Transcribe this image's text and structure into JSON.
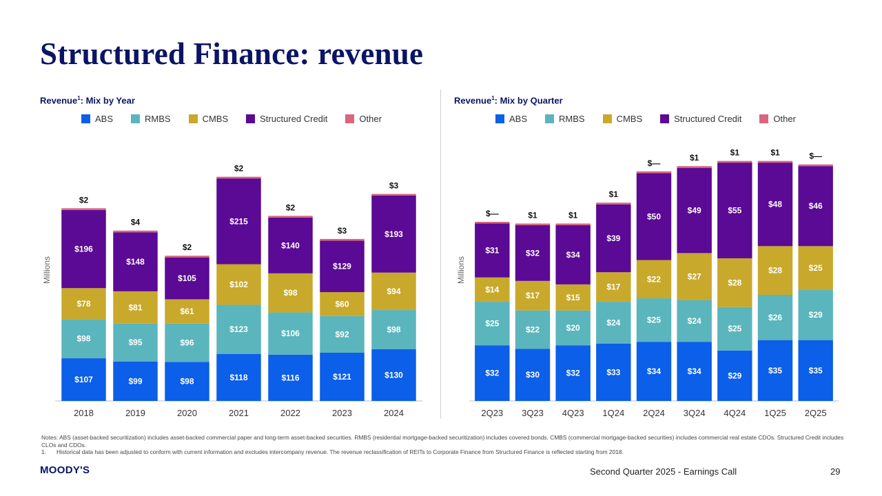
{
  "title": "Structured Finance: revenue",
  "colors": {
    "ABS": "#0b5fe8",
    "RMBS": "#5bb5bd",
    "CMBS": "#c8a92c",
    "Structured Credit": "#5a0a94",
    "Other": "#d9667c"
  },
  "chart_data": [
    {
      "type": "bar",
      "stacked": true,
      "title": "Revenue",
      "title_superscript": "1",
      "title_suffix": ": Mix by Year",
      "ylabel": "Millions",
      "legend": [
        "ABS",
        "RMBS",
        "CMBS",
        "Structured Credit",
        "Other"
      ],
      "categories": [
        "2018",
        "2019",
        "2020",
        "2021",
        "2022",
        "2023",
        "2024"
      ],
      "series": [
        {
          "name": "ABS",
          "values": [
            107,
            99,
            98,
            118,
            116,
            121,
            130
          ],
          "labels": [
            "$107",
            "$99",
            "$98",
            "$118",
            "$116",
            "$121",
            "$130"
          ]
        },
        {
          "name": "RMBS",
          "values": [
            98,
            95,
            96,
            123,
            106,
            92,
            98
          ],
          "labels": [
            "$98",
            "$95",
            "$96",
            "$123",
            "$106",
            "$92",
            "$98"
          ]
        },
        {
          "name": "CMBS",
          "values": [
            78,
            81,
            61,
            102,
            98,
            60,
            94
          ],
          "labels": [
            "$78",
            "$81",
            "$61",
            "$102",
            "$98",
            "$60",
            "$94"
          ]
        },
        {
          "name": "Structured Credit",
          "values": [
            196,
            148,
            105,
            215,
            140,
            129,
            193
          ],
          "labels": [
            "$196",
            "$148",
            "$105",
            "$215",
            "$140",
            "$129",
            "$193"
          ]
        },
        {
          "name": "Other",
          "values": [
            2,
            4,
            2,
            2,
            2,
            3,
            3
          ],
          "labels": [
            "$2",
            "$4",
            "$2",
            "$2",
            "$2",
            "$3",
            "$3"
          ]
        }
      ]
    },
    {
      "type": "bar",
      "stacked": true,
      "title": "Revenue",
      "title_superscript": "1",
      "title_suffix": ": Mix by Quarter",
      "ylabel": "Millions",
      "legend": [
        "ABS",
        "RMBS",
        "CMBS",
        "Structured Credit",
        "Other"
      ],
      "categories": [
        "2Q23",
        "3Q23",
        "4Q23",
        "1Q24",
        "2Q24",
        "3Q24",
        "4Q24",
        "1Q25",
        "2Q25"
      ],
      "series": [
        {
          "name": "ABS",
          "values": [
            32,
            30,
            32,
            33,
            34,
            34,
            29,
            35,
            35
          ],
          "labels": [
            "$32",
            "$30",
            "$32",
            "$33",
            "$34",
            "$34",
            "$29",
            "$35",
            "$35"
          ]
        },
        {
          "name": "RMBS",
          "values": [
            25,
            22,
            20,
            24,
            25,
            24,
            25,
            26,
            29
          ],
          "labels": [
            "$25",
            "$22",
            "$20",
            "$24",
            "$25",
            "$24",
            "$25",
            "$26",
            "$29"
          ]
        },
        {
          "name": "CMBS",
          "values": [
            14,
            17,
            15,
            17,
            22,
            27,
            28,
            28,
            25
          ],
          "labels": [
            "$14",
            "$17",
            "$15",
            "$17",
            "$22",
            "$27",
            "$28",
            "$28",
            "$25"
          ]
        },
        {
          "name": "Structured Credit",
          "values": [
            31,
            32,
            34,
            39,
            50,
            49,
            55,
            48,
            46
          ],
          "labels": [
            "$31",
            "$32",
            "$34",
            "$39",
            "$50",
            "$49",
            "$55",
            "$48",
            "$46"
          ]
        },
        {
          "name": "Other",
          "values": [
            0,
            1,
            1,
            1,
            0,
            1,
            1,
            1,
            0
          ],
          "labels": [
            "$—",
            "$1",
            "$1",
            "$1",
            "$—",
            "$1",
            "$1",
            "$1",
            "$—"
          ]
        }
      ]
    }
  ],
  "notes": {
    "main": "Notes: ABS (asset-backed securitization) includes asset-backed commercial paper and long-term asset-backed securities. RMBS (residential mortgage-backed securitization) includes covered bonds. CMBS (commercial mortgage-backed securities) includes commercial real estate CDOs. Structured Credit includes CLOs and CDOs.",
    "footnote_number": "1.",
    "footnote": "Historical data has been adjusted to conform with current information and excludes intercompany revenue. The revenue reclassification of REITs to Corporate Finance from Structured Finance is reflected starting from 2018."
  },
  "footer": {
    "logo": "MOODY'S",
    "text": "Second Quarter 2025 - Earnings Call",
    "page": "29"
  }
}
